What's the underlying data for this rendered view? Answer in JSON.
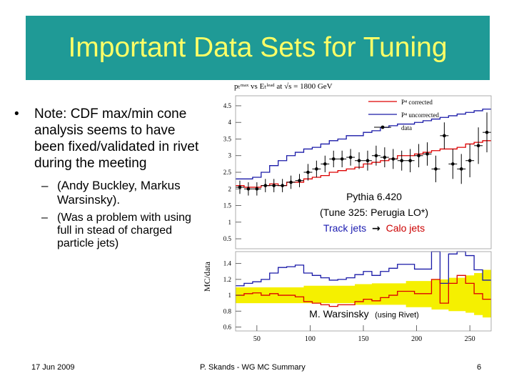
{
  "slide": {
    "title": "Important Data Sets for Tuning",
    "bullet": "Note: CDF max/min cone analysis seems to have been fixed/validated in rivet during the meeting",
    "sub_bullets": [
      "(Andy Buckley, Markus Warsinsky).",
      "(Was a problem with using full in stead of charged particle jets)"
    ],
    "bullet_symbol": "•",
    "sub_symbol": "–",
    "footer_date": "17 Jun 2009",
    "footer_center": "P. Skands - WG MC Summary",
    "page_number": "6"
  },
  "figure": {
    "header": "pₜᵐᵃˣ vs Eₜˡᵉᵃᵈ at √s = 1800 GeV",
    "legend": [
      "P⁴ corrected",
      "P⁴ uncorrected",
      "data"
    ],
    "annotation_line1": "Pythia 6.420",
    "annotation_line2": "(Tune 325: Perugia LO*)",
    "annotation_track": "Track jets",
    "annotation_arrow": "→",
    "annotation_calo": "Calo jets",
    "credit_name": "M. Warsinsky",
    "credit_note": "(using Rivet)",
    "ratio_ylabel": "MC/data",
    "colors": {
      "red": "#dd0000",
      "blue": "#1a1aa8",
      "band": "#f5f000",
      "annotation_blue": "#1a1ab0",
      "annotation_red": "#cc0000"
    }
  },
  "chart_data": {
    "type": "line",
    "x": [
      34,
      42,
      50,
      58,
      66,
      74,
      82,
      90,
      98,
      106,
      114,
      122,
      130,
      138,
      146,
      154,
      162,
      170,
      178,
      186,
      194,
      202,
      210,
      218,
      226,
      234,
      242,
      250,
      258,
      266
    ],
    "top_yticks": [
      "4.5",
      "4",
      "3.5",
      "3",
      "2.5",
      "2",
      "1.5",
      "1",
      "0.5"
    ],
    "top_yvals": [
      4.5,
      4,
      3.5,
      3,
      2.5,
      2,
      1.5,
      1,
      0.5
    ],
    "ylim_top": [
      0.2,
      4.8
    ],
    "ratio_yticks": [
      "1.4",
      "1.2",
      "1",
      "0.8",
      "0.6"
    ],
    "ratio_yvals": [
      1.4,
      1.2,
      1,
      0.8,
      0.6
    ],
    "ylim_ratio": [
      0.55,
      1.55
    ],
    "xticks": [
      "50",
      "100",
      "150",
      "200",
      "250"
    ],
    "xtick_vals": [
      50,
      100,
      150,
      200,
      250
    ],
    "xlim": [
      30,
      270
    ],
    "series": [
      {
        "name": "P⁴ corrected",
        "values": [
          2.1,
          2.05,
          2.05,
          2.1,
          2.15,
          2.1,
          2.2,
          2.2,
          2.3,
          2.35,
          2.4,
          2.5,
          2.55,
          2.6,
          2.65,
          2.75,
          2.8,
          2.85,
          2.9,
          3.0,
          3.0,
          3.05,
          3.1,
          3.15,
          3.2,
          3.2,
          3.25,
          3.35,
          3.4,
          3.45
        ]
      },
      {
        "name": "P⁴ uncorrected",
        "values": [
          2.3,
          2.3,
          2.35,
          2.5,
          2.7,
          2.85,
          3.0,
          3.1,
          3.2,
          3.25,
          3.35,
          3.45,
          3.5,
          3.6,
          3.6,
          3.7,
          3.75,
          3.85,
          3.9,
          3.95,
          3.95,
          4.0,
          4.05,
          4.1,
          4.15,
          4.2,
          4.25,
          4.3,
          4.35,
          4.4
        ]
      },
      {
        "name": "data",
        "values": [
          2.05,
          2.0,
          2.0,
          2.1,
          2.1,
          2.1,
          2.2,
          2.25,
          2.5,
          2.6,
          2.75,
          2.9,
          2.9,
          2.95,
          2.85,
          2.85,
          3.0,
          2.95,
          2.9,
          2.85,
          2.85,
          3.0,
          3.05,
          2.6,
          3.6,
          2.75,
          2.6,
          2.85,
          3.3,
          3.7
        ],
        "errors": [
          0.2,
          0.2,
          0.2,
          0.2,
          0.2,
          0.2,
          0.2,
          0.2,
          0.25,
          0.25,
          0.25,
          0.25,
          0.25,
          0.25,
          0.25,
          0.3,
          0.3,
          0.3,
          0.3,
          0.3,
          0.35,
          0.35,
          0.35,
          0.4,
          0.4,
          0.45,
          0.45,
          0.5,
          0.55,
          0.6
        ]
      }
    ],
    "ratio_series": [
      {
        "name": "P⁴ corrected",
        "values": [
          1.0,
          1.02,
          1.03,
          1.0,
          1.02,
          1.0,
          1.0,
          0.98,
          0.92,
          0.9,
          0.88,
          0.86,
          0.88,
          0.88,
          0.92,
          0.95,
          0.93,
          0.97,
          1.0,
          1.05,
          1.05,
          1.02,
          1.02,
          1.2,
          0.9,
          1.15,
          1.25,
          1.15,
          1.02,
          0.95
        ]
      },
      {
        "name": "P⁴ uncorrected",
        "values": [
          1.12,
          1.15,
          1.17,
          1.2,
          1.28,
          1.35,
          1.36,
          1.38,
          1.28,
          1.25,
          1.22,
          1.19,
          1.2,
          1.22,
          1.26,
          1.3,
          1.25,
          1.3,
          1.34,
          1.39,
          1.39,
          1.33,
          1.33,
          1.55,
          1.15,
          1.52,
          1.55,
          1.5,
          1.32,
          1.19
        ]
      }
    ],
    "band": {
      "lower": [
        0.9,
        0.9,
        0.9,
        0.9,
        0.9,
        0.9,
        0.9,
        0.9,
        0.9,
        0.9,
        0.9,
        0.9,
        0.9,
        0.9,
        0.88,
        0.88,
        0.88,
        0.88,
        0.88,
        0.88,
        0.85,
        0.85,
        0.85,
        0.82,
        0.82,
        0.8,
        0.8,
        0.78,
        0.75,
        0.72
      ],
      "upper": [
        1.1,
        1.1,
        1.1,
        1.1,
        1.1,
        1.1,
        1.1,
        1.1,
        1.12,
        1.12,
        1.12,
        1.12,
        1.12,
        1.12,
        1.14,
        1.14,
        1.15,
        1.15,
        1.15,
        1.15,
        1.18,
        1.18,
        1.18,
        1.2,
        1.2,
        1.22,
        1.22,
        1.25,
        1.28,
        1.32
      ]
    }
  }
}
